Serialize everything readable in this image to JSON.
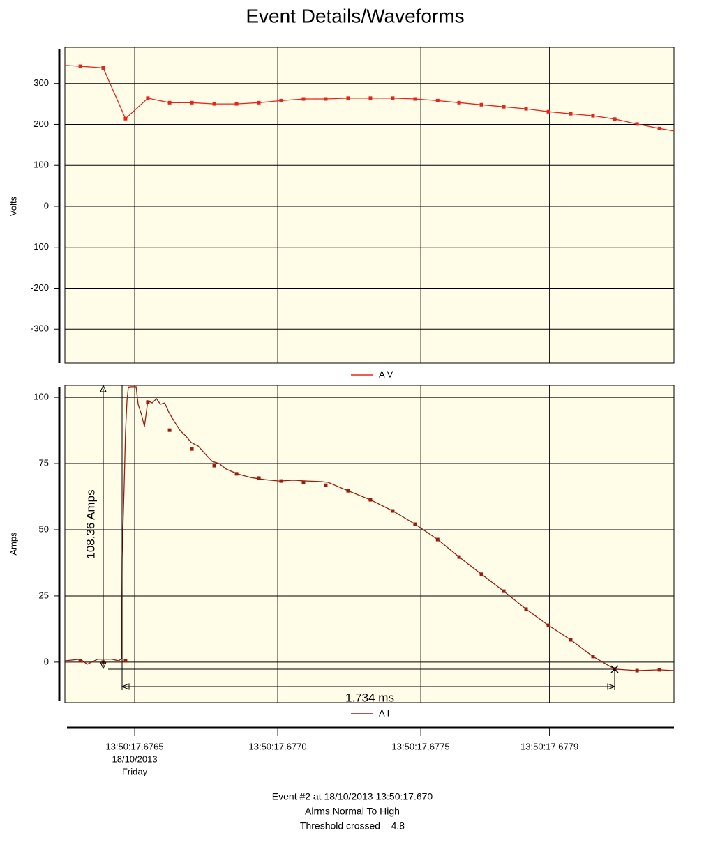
{
  "chart_data": [
    {
      "type": "line",
      "title": "Event Details/Waveforms",
      "ylabel": "Volts",
      "xlim": [
        17.676256,
        17.678385
      ],
      "xticks": [
        17.6765,
        17.677,
        17.6775,
        17.67795
      ],
      "ylim": [
        -383,
        388
      ],
      "yticks": [
        -300,
        -200,
        -100,
        0,
        100,
        200,
        300
      ],
      "grid": true,
      "x": [
        17.676256,
        17.67631,
        17.67639,
        17.676468,
        17.676546,
        17.676622,
        17.6767,
        17.676778,
        17.676856,
        17.676934,
        17.677012,
        17.67709,
        17.677168,
        17.677246,
        17.677324,
        17.677402,
        17.67748,
        17.677559,
        17.677634,
        17.677712,
        17.67779,
        17.677868,
        17.677946,
        17.678024,
        17.678102,
        17.678178,
        17.678256,
        17.678334,
        17.678385
      ],
      "series": [
        {
          "name": "A V",
          "color": "#e3261b",
          "values": [
            344,
            342,
            338,
            214,
            264,
            253,
            253,
            250,
            250,
            253,
            258,
            262,
            262,
            264,
            264,
            264,
            262,
            258,
            253,
            248,
            243,
            238,
            231,
            226,
            221,
            213,
            201,
            190,
            184
          ]
        }
      ]
    },
    {
      "type": "line",
      "ylabel": "Amps",
      "xlim": [
        17.676256,
        17.678385
      ],
      "xticks": [
        {
          "value": 17.6765,
          "label": "13:50:17.6765"
        },
        {
          "value": 17.677,
          "label": "13:50:17.6770"
        },
        {
          "value": 17.6775,
          "label": "13:50:17.6775"
        },
        {
          "value": 17.67795,
          "label": "13:50:17.6779"
        }
      ],
      "xtick_sublabels": [
        "18/10/2013",
        "Friday"
      ],
      "ylim": [
        -15.3,
        104.5
      ],
      "yticks": [
        0,
        25,
        50,
        75,
        100
      ],
      "grid": true,
      "annotations": [
        "108.36 Amps",
        "1.734 ms"
      ],
      "series": [
        {
          "name": "A I",
          "color": "#9a1c10",
          "x": [
            17.676256,
            17.67631,
            17.676334,
            17.676371,
            17.67642,
            17.676444,
            17.676454,
            17.676456,
            17.676463,
            17.676468,
            17.676473,
            17.676478,
            17.676488,
            17.676505,
            17.676512,
            17.676524,
            17.676534,
            17.676546,
            17.676561,
            17.676576,
            17.67659,
            17.676605,
            17.67662,
            17.676639,
            17.676659,
            17.676678,
            17.676698,
            17.676722,
            17.676744,
            17.676771,
            17.676795,
            17.67682,
            17.676859,
            17.676907,
            17.676956,
            17.677005,
            17.677054,
            17.677102,
            17.677151,
            17.677176,
            17.677246,
            17.677324,
            17.677402,
            17.67748,
            17.677559,
            17.677634,
            17.677712,
            17.67779,
            17.677868,
            17.677946,
            17.678024,
            17.678102,
            17.678178,
            17.678256,
            17.678334,
            17.678385
          ],
          "values": [
            0.5,
            1.1,
            -0.8,
            1.1,
            1.1,
            0.5,
            1.3,
            39.5,
            65.8,
            86.8,
            98.7,
            103.9,
            104,
            104,
            97.4,
            93.4,
            88.9,
            98.7,
            97.9,
            99.5,
            97.4,
            97.9,
            94.2,
            90.8,
            87.4,
            85.5,
            82.9,
            81.6,
            78.9,
            75.8,
            75,
            72.9,
            71.1,
            69.7,
            68.9,
            68.4,
            68.7,
            68.4,
            68.2,
            67.9,
            64.7,
            61.3,
            57.1,
            52.1,
            46.3,
            39.7,
            33.2,
            26.8,
            20,
            13.9,
            8.4,
            2.1,
            -2.6,
            -3.2,
            -2.9,
            -3.2
          ],
          "marker_x": [
            17.67631,
            17.67639,
            17.676468,
            17.676546,
            17.676622,
            17.6767,
            17.676778,
            17.676856,
            17.676934,
            17.677012,
            17.67709,
            17.677168,
            17.677246,
            17.677324,
            17.677402,
            17.67748,
            17.677559,
            17.677634,
            17.677712,
            17.67779,
            17.677868,
            17.677946,
            17.678024,
            17.678102,
            17.678178,
            17.678256,
            17.678334
          ],
          "marker_values": [
            0.5,
            0,
            0.5,
            98.2,
            87.6,
            80.5,
            74.2,
            71.1,
            69.5,
            68.4,
            67.9,
            66.8,
            64.7,
            61.3,
            57.1,
            52.1,
            46.3,
            39.7,
            33.2,
            26.8,
            20,
            13.9,
            8.4,
            2.1,
            -2.6,
            -3.2,
            -2.9
          ]
        }
      ]
    }
  ],
  "footer": [
    "Event #2 at 18/10/2013 13:50:17.670",
    "Alrms Normal To High",
    "Threshold crossed    4.8"
  ]
}
